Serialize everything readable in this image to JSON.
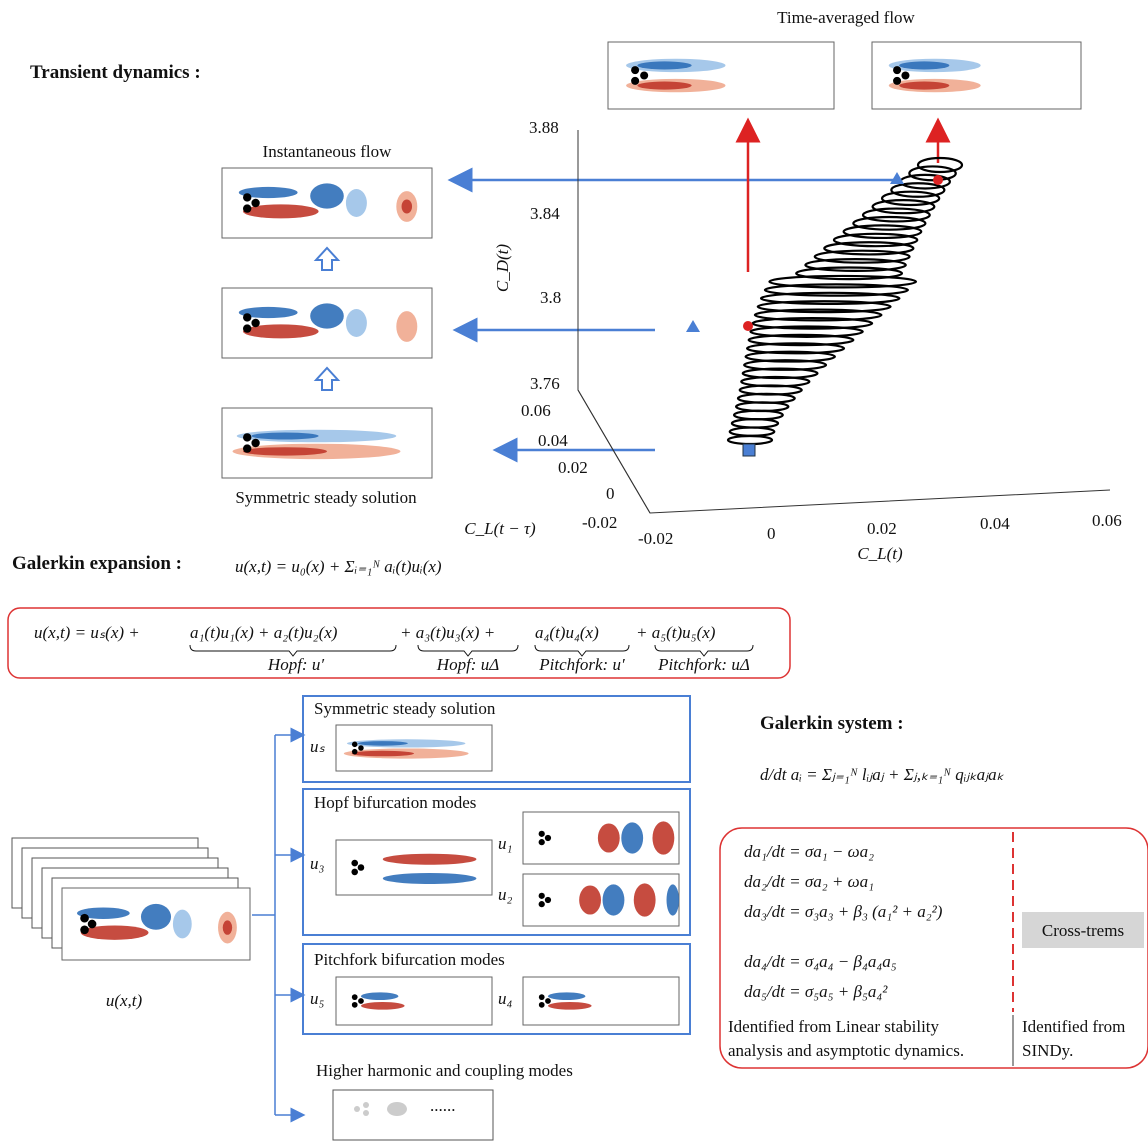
{
  "transient": {
    "title": "Transient dynamics :",
    "time_averaged": "Time-averaged flow",
    "instantaneous": "Instantaneous flow",
    "steady": "Symmetric steady solution"
  },
  "plot": {
    "z_label": "C_D(t)",
    "z_ticks": [
      "3.88",
      "3.84",
      "3.8",
      "3.76"
    ],
    "y_label": "C_L(t − τ)",
    "y_ticks": [
      "0.06",
      "0.04",
      "0.02",
      "0",
      "-0.02"
    ],
    "x_label": "C_L(t)",
    "x_ticks": [
      "-0.02",
      "0",
      "0.02",
      "0.04",
      "0.06"
    ]
  },
  "expansion": {
    "title": "Galerkin expansion :",
    "equation": "u(x,t) = u₀(x) + Σᵢ₌₁ᴺ aᵢ(t)uᵢ(x)",
    "terms": [
      "u(x,t) = uₛ(x) +",
      "a₁(t)u₁(x) + a₂(t)u₂(x)",
      "+ a₃(t)u₃(x) +",
      "a₄(t)u₄(x)",
      "+  a₅(t)u₅(x)"
    ],
    "braces": [
      "Hopf: u′",
      "Hopf: uΔ",
      "Pitchfork: u′",
      "Pitchfork: uΔ"
    ]
  },
  "modes": {
    "snapshot_label": "u(x,t)",
    "steady_title": "Symmetric steady solution",
    "us": "uₛ",
    "hopf_title": "Hopf bifurcation modes",
    "u3": "u₃",
    "u1": "u₁",
    "u2": "u₂",
    "pitchfork_title": "Pitchfork bifurcation modes",
    "u5": "u₅",
    "u4": "u₄",
    "higher_title": "Higher harmonic and coupling modes",
    "dots": "......"
  },
  "system": {
    "title": "Galerkin system :",
    "equation": "d/dt aᵢ = Σⱼ₌₁ᴺ lᵢⱼaⱼ + Σⱼ,ₖ₌₁ᴺ qᵢⱼₖaⱼaₖ",
    "equations": [
      "da₁/dt = σa₁ − ωa₂",
      "da₂/dt = σa₂ + ωa₁",
      "da₃/dt = σ₃a₃ + β₃ (a₁² + a₂²)",
      "da₄/dt = σ₄a₄ − β₄a₄a₅",
      "da₅/dt = σ₅a₅ + β₅a₄²"
    ],
    "cross_terms": "Cross-trems",
    "left_note": [
      "Identified from Linear stability",
      "analysis and asymptotic dynamics."
    ],
    "right_note": [
      "Identified from",
      "SINDy."
    ]
  }
}
